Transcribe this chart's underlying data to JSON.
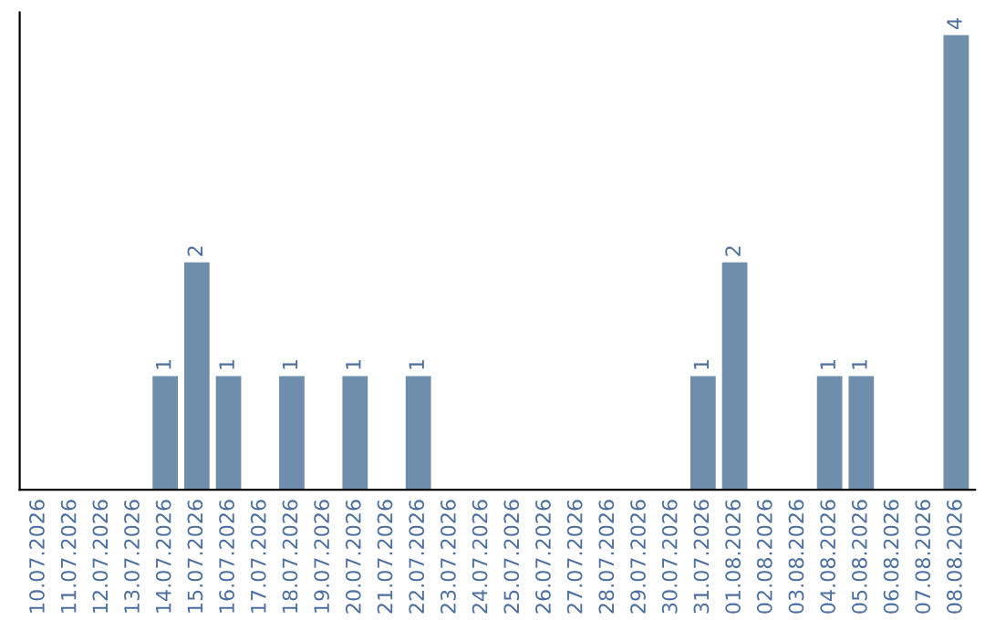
{
  "chart_data": {
    "type": "bar",
    "categories": [
      "10.07.2026",
      "11.07.2026",
      "12.07.2026",
      "13.07.2026",
      "14.07.2026",
      "15.07.2026",
      "16.07.2026",
      "17.07.2026",
      "18.07.2026",
      "19.07.2026",
      "20.07.2026",
      "21.07.2026",
      "22.07.2026",
      "23.07.2026",
      "24.07.2026",
      "25.07.2026",
      "26.07.2026",
      "27.07.2026",
      "28.07.2026",
      "29.07.2026",
      "30.07.2026",
      "31.07.2026",
      "01.08.2026",
      "02.08.2026",
      "03.08.2026",
      "04.08.2026",
      "05.08.2026",
      "06.08.2026",
      "07.08.2026",
      "08.08.2026"
    ],
    "values": [
      0,
      0,
      0,
      0,
      1,
      2,
      1,
      0,
      1,
      0,
      1,
      0,
      1,
      0,
      0,
      0,
      0,
      0,
      0,
      0,
      0,
      1,
      2,
      0,
      0,
      1,
      1,
      0,
      0,
      4
    ],
    "value_labels": [
      null,
      null,
      null,
      null,
      "1",
      "2",
      "1",
      null,
      "1",
      null,
      "1",
      null,
      "1",
      null,
      null,
      null,
      null,
      null,
      null,
      null,
      null,
      "1",
      "2",
      null,
      null,
      "1",
      "1",
      null,
      null,
      "4"
    ],
    "color": "#6e8eab",
    "grid": false,
    "tick_labels": "x"
  }
}
